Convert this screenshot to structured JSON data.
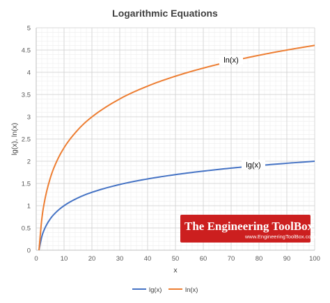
{
  "chart_data": {
    "type": "line",
    "title": "Logarithmic Equations",
    "xlabel": "x",
    "ylabel": "lg(x), ln(x)",
    "xlim": [
      0,
      100
    ],
    "ylim": [
      0,
      5
    ],
    "x_ticks": [
      "0",
      "10",
      "20",
      "30",
      "40",
      "50",
      "60",
      "70",
      "80",
      "90",
      "100"
    ],
    "y_ticks": [
      "0",
      "0.5",
      "1",
      "1.5",
      "2",
      "2.5",
      "3",
      "3.5",
      "4",
      "4.5",
      "5"
    ],
    "grid": true,
    "legend_position": "bottom",
    "series": [
      {
        "name": "lg(x)",
        "color": "#4472c4",
        "label": "lg(x)",
        "x": [
          1,
          2,
          3,
          5,
          7,
          10,
          15,
          20,
          30,
          40,
          50,
          60,
          70,
          80,
          90,
          100
        ],
        "y": [
          0,
          0.301,
          0.477,
          0.699,
          0.845,
          1,
          1.176,
          1.301,
          1.477,
          1.602,
          1.699,
          1.778,
          1.845,
          1.903,
          1.954,
          2
        ]
      },
      {
        "name": "ln(x)",
        "color": "#ed7d31",
        "label": "ln(x)",
        "x": [
          1,
          2,
          3,
          5,
          7,
          10,
          15,
          20,
          30,
          40,
          50,
          60,
          70,
          80,
          90,
          100
        ],
        "y": [
          0,
          0.693,
          1.099,
          1.609,
          1.946,
          2.303,
          2.708,
          2.996,
          3.401,
          3.689,
          3.912,
          4.094,
          4.248,
          4.382,
          4.5,
          4.605
        ]
      }
    ]
  },
  "watermark": {
    "title": "The Engineering ToolBox",
    "url": "www.EngineeringToolBox.com",
    "bg_color": "#cc1f1f"
  }
}
